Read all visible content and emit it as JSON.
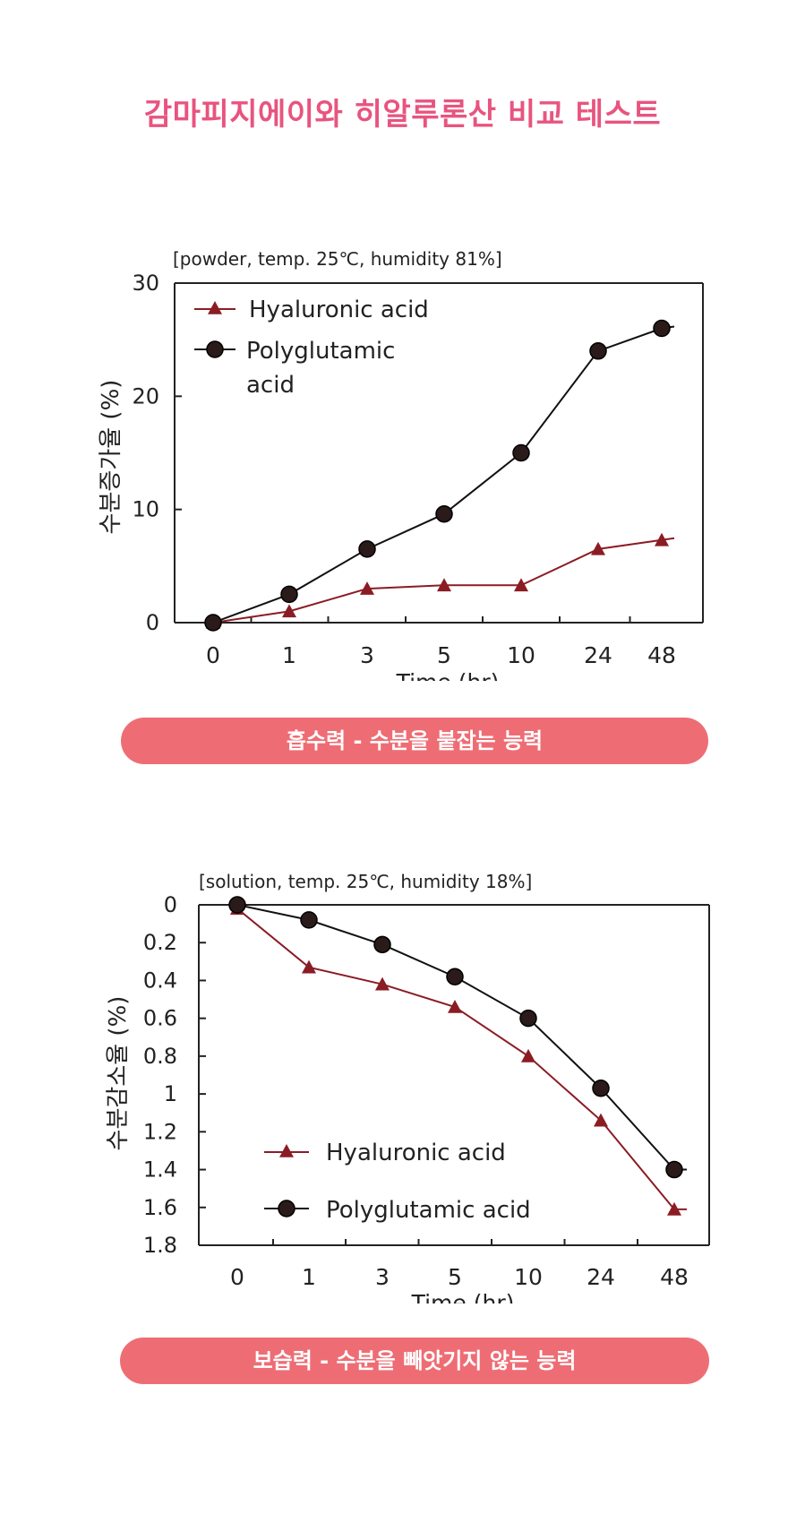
{
  "page": {
    "title": "감마피지에이와 히알루론산 비교 테스트",
    "caption1": "흡수력 - 수분을 붙잡는 능력",
    "caption2": "보습력 - 수분을 빼앗기지 않는 능력"
  },
  "colors": {
    "title": "#e8547f",
    "pill": "#ee6d74",
    "hyaluronic": "#8b1c24",
    "polyglutamic": "#111111"
  },
  "chart_data": [
    {
      "type": "line",
      "subtitle": "[powder, temp. 25℃, humidity 81%]",
      "xlabel": "Time (hr)",
      "ylabel": "수분증가율 (%)",
      "categories": [
        "0",
        "1",
        "3",
        "5",
        "10",
        "24",
        "48"
      ],
      "yticks": [
        0,
        10,
        20,
        30
      ],
      "ylim": [
        0,
        30
      ],
      "y_inverted": false,
      "grid": false,
      "legend_position": "top-left",
      "series": [
        {
          "name": "Hyaluronic  acid",
          "marker": "triangle",
          "color": "#8b1c24",
          "values": [
            0,
            1,
            3,
            3.3,
            3.3,
            6.5,
            7.3
          ]
        },
        {
          "name": "Polyglutamic acid",
          "legend_lines": [
            "Polyglutamic",
            "acid"
          ],
          "marker": "circle",
          "color": "#111111",
          "values": [
            0,
            2.5,
            6.5,
            9.6,
            15,
            24,
            26
          ]
        }
      ]
    },
    {
      "type": "line",
      "subtitle": "[solution, temp. 25℃, humidity 18%]",
      "xlabel": "Time (hr)",
      "ylabel": "수분감소율 (%)",
      "categories": [
        "0",
        "1",
        "3",
        "5",
        "10",
        "24",
        "48"
      ],
      "yticks": [
        "0",
        "0.2",
        "0.4",
        "0.6",
        "0.8",
        "1",
        "1.2",
        "1.4",
        "1.6",
        "1.8"
      ],
      "ylim": [
        0,
        1.8
      ],
      "y_inverted": true,
      "grid": false,
      "legend_position": "bottom-left",
      "series": [
        {
          "name": "Hyaluronic  acid",
          "marker": "triangle",
          "color": "#8b1c24",
          "values": [
            0.02,
            0.33,
            0.42,
            0.54,
            0.8,
            1.14,
            1.61
          ]
        },
        {
          "name": "Polyglutamic  acid",
          "legend_lines": [
            "Polyglutamic  acid"
          ],
          "marker": "circle",
          "color": "#111111",
          "values": [
            0,
            0.08,
            0.21,
            0.38,
            0.6,
            0.97,
            1.4
          ]
        }
      ]
    }
  ]
}
